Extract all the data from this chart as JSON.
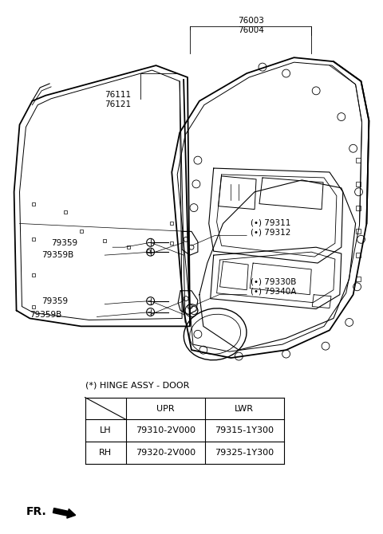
{
  "bg_color": "#ffffff",
  "line_color": "#000000",
  "text_color": "#000000",
  "title": "76003\n76004",
  "label_76111": "76111\n76121",
  "label_79311": "(•) 79311\n(•) 79312",
  "label_79359_up": "79359",
  "label_79359B_up": "79359B",
  "label_79330B": "(•) 79330B\n(•) 79340A",
  "label_79359_lo": "79359",
  "label_79359B_lo": "79359B",
  "table_title": "(*) HINGE ASSY - DOOR",
  "table_header": [
    "",
    "UPR",
    "LWR"
  ],
  "table_rows": [
    [
      "LH",
      "79310-2V000",
      "79315-1Y300"
    ],
    [
      "RH",
      "79320-2V000",
      "79325-1Y300"
    ]
  ],
  "fr_label": "FR."
}
